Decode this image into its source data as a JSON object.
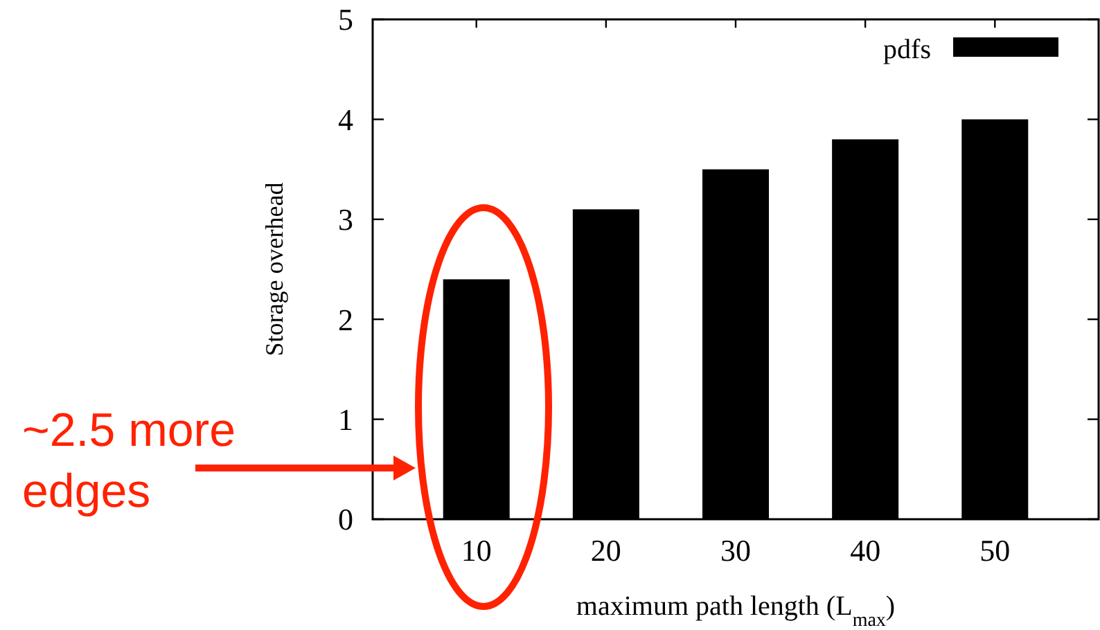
{
  "chart_data": {
    "type": "bar",
    "ylabel": "Storage overhead",
    "xlabel": "maximum path length (L$_{max}$)",
    "categories": [
      "10",
      "20",
      "30",
      "40",
      "50"
    ],
    "series": [
      {
        "name": "pdfs",
        "color": "#000000",
        "values": [
          2.4,
          3.1,
          3.5,
          3.8,
          4.0
        ]
      }
    ],
    "ylim": [
      0,
      5
    ],
    "yticks": [
      0,
      1,
      2,
      3,
      4,
      5
    ],
    "grid": false,
    "legend": "top right",
    "annotations": [
      "~2.5 more edges"
    ]
  }
}
